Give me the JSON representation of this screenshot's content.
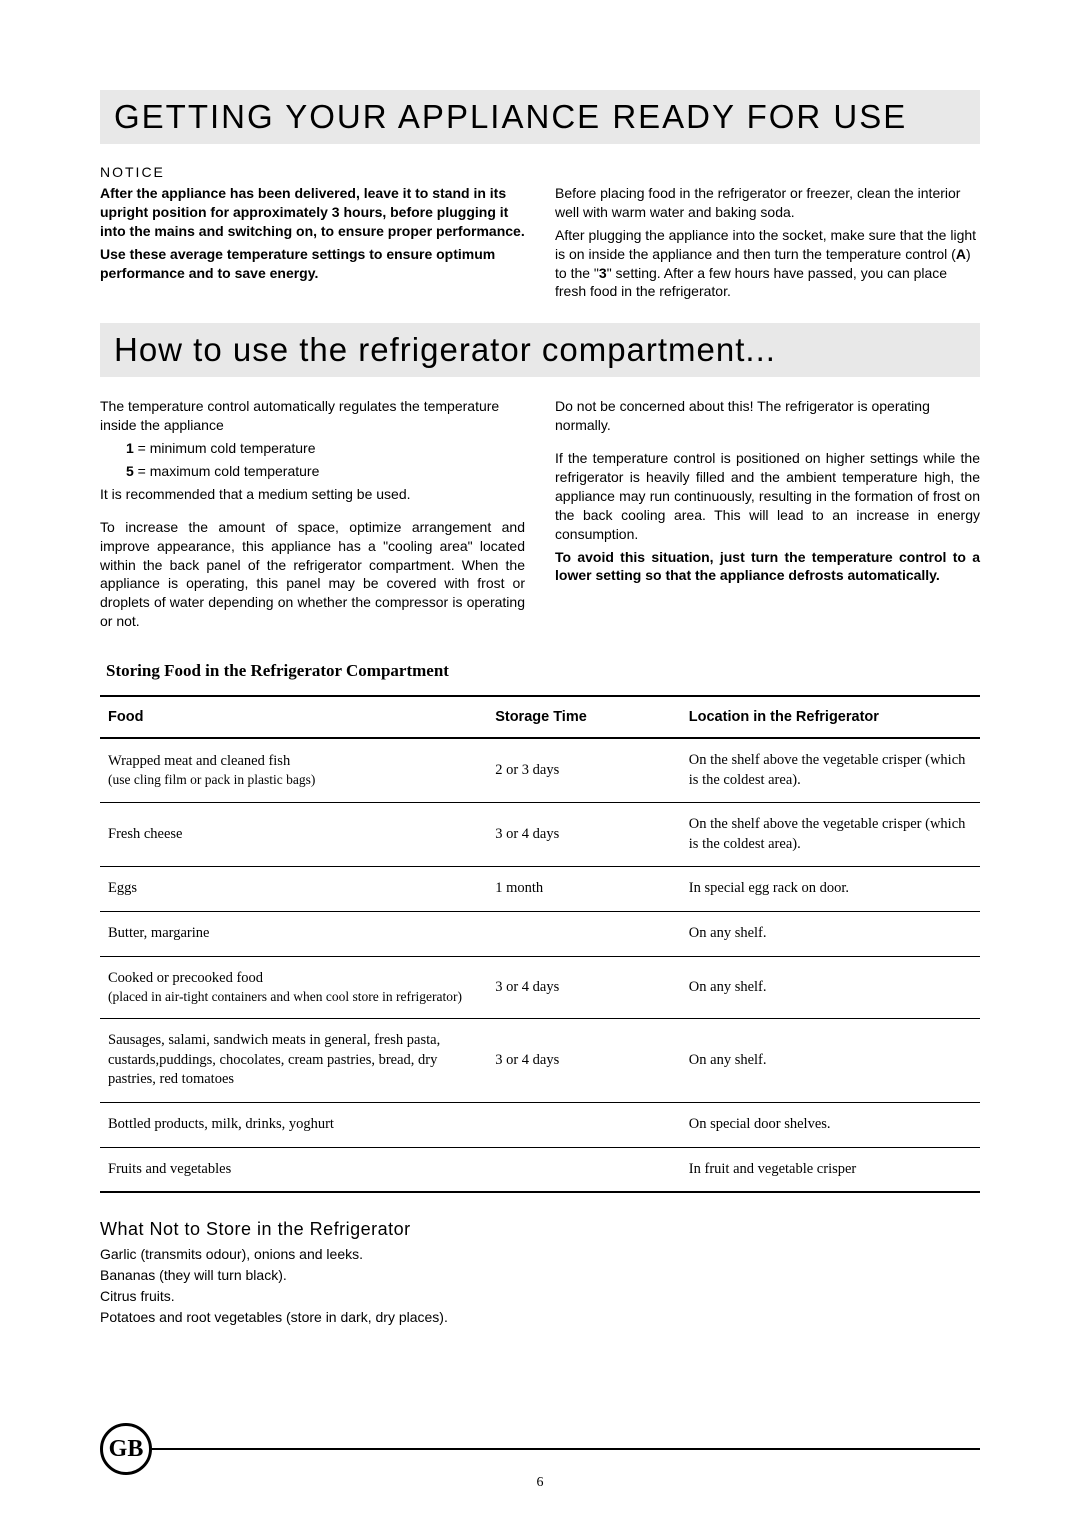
{
  "heading1": "GETTING YOUR APPLIANCE READY FOR USE",
  "notice_label": "NOTICE",
  "notice_left_bold": "After the appliance has been delivered, leave it to stand in its upright position for approximately 3 hours, before plugging it into the mains and switching on, to ensure proper performance.",
  "notice_left_bold2": "Use these average temperature settings to ensure optimum performance and to save energy.",
  "notice_right_p1": "Before placing food in the refrigerator or freezer, clean the interior well with warm water and baking soda.",
  "notice_right_p2a": "After plugging the appliance into the socket, make sure that the light is on inside the appliance and then turn the temperature control (",
  "notice_right_p2_A": "A",
  "notice_right_p2b": ")  to the  \"",
  "notice_right_p2_3": "3",
  "notice_right_p2c": "\" setting. After a few hours have passed, you can place fresh food in the refrigerator.",
  "heading2": "How to use the refrigerator compartment...",
  "sec2_left_p1": "The temperature control automatically regulates the temperature inside the appliance",
  "sec2_left_li1a": "1",
  "sec2_left_li1b": " = minimum cold temperature",
  "sec2_left_li2a": "5",
  "sec2_left_li2b": " = maximum cold temperature",
  "sec2_left_p2": "It is recommended that a medium setting be used.",
  "sec2_left_p3": "To increase the amount of space, optimize arrangement and improve appearance, this appliance has a \"cooling area\" located within the back panel of the refrigerator compartment. When the appliance is operating, this panel may be covered with frost or droplets of water depending on whether the compressor is operating or not.",
  "sec2_right_p1": "Do not be concerned about this! The refrigerator is operating normally.",
  "sec2_right_p2": "If the temperature control is positioned on higher settings while the refrigerator is heavily filled and the ambient temperature high, the appliance may run continuously, resulting in the formation of frost on the back cooling area. This will lead to an increase in energy consumption.",
  "sec2_right_bold": "To avoid this situation, just turn the temperature control to a lower setting so that the appliance defrosts automatically.",
  "table_title": "Storing Food in the Refrigerator Compartment",
  "table": {
    "headers": [
      "Food",
      "Storage Time",
      "Location in the Refrigerator"
    ],
    "rows": [
      {
        "food": "Wrapped meat and cleaned fish",
        "food_sub": "(use cling film or pack in plastic bags)",
        "time": "2 or 3 days",
        "loc": "On the shelf above the vegetable crisper (which is the coldest area)."
      },
      {
        "food": "Fresh  cheese",
        "food_sub": "",
        "time": "3 or 4 days",
        "loc": "On the shelf above the vegetable crisper (which is the coldest area)."
      },
      {
        "food": "Eggs",
        "food_sub": "",
        "time": "1 month",
        "loc": "In special egg rack on door."
      },
      {
        "food": "Butter, margarine",
        "food_sub": "",
        "time": "",
        "loc": "On any shelf."
      },
      {
        "food": "Cooked or precooked food",
        "food_sub": "(placed in air-tight containers and when cool store in refrigerator)",
        "time": "3 or 4 days",
        "loc": "On any shelf."
      },
      {
        "food": "Sausages, salami, sandwich meats in general, fresh pasta, custards,puddings, chocolates, cream pastries, bread, dry pastries, red tomatoes",
        "food_sub": "",
        "time": "3 or 4 days",
        "loc": "On any shelf."
      },
      {
        "food": "Bottled products, milk, drinks, yoghurt",
        "food_sub": "",
        "time": "",
        "loc": "On special door shelves."
      },
      {
        "food": "Fruits and vegetables",
        "food_sub": "",
        "time": "",
        "loc": "In fruit and vegetable crisper"
      }
    ]
  },
  "what_not_title": "What Not to Store in the Refrigerator",
  "what_not_lines": [
    "Garlic (transmits odour), onions and leeks.",
    "Bananas (they will turn black).",
    "Citrus fruits.",
    "Potatoes and root vegetables (store in dark, dry places)."
  ],
  "gb": "GB",
  "page_num": "6"
}
